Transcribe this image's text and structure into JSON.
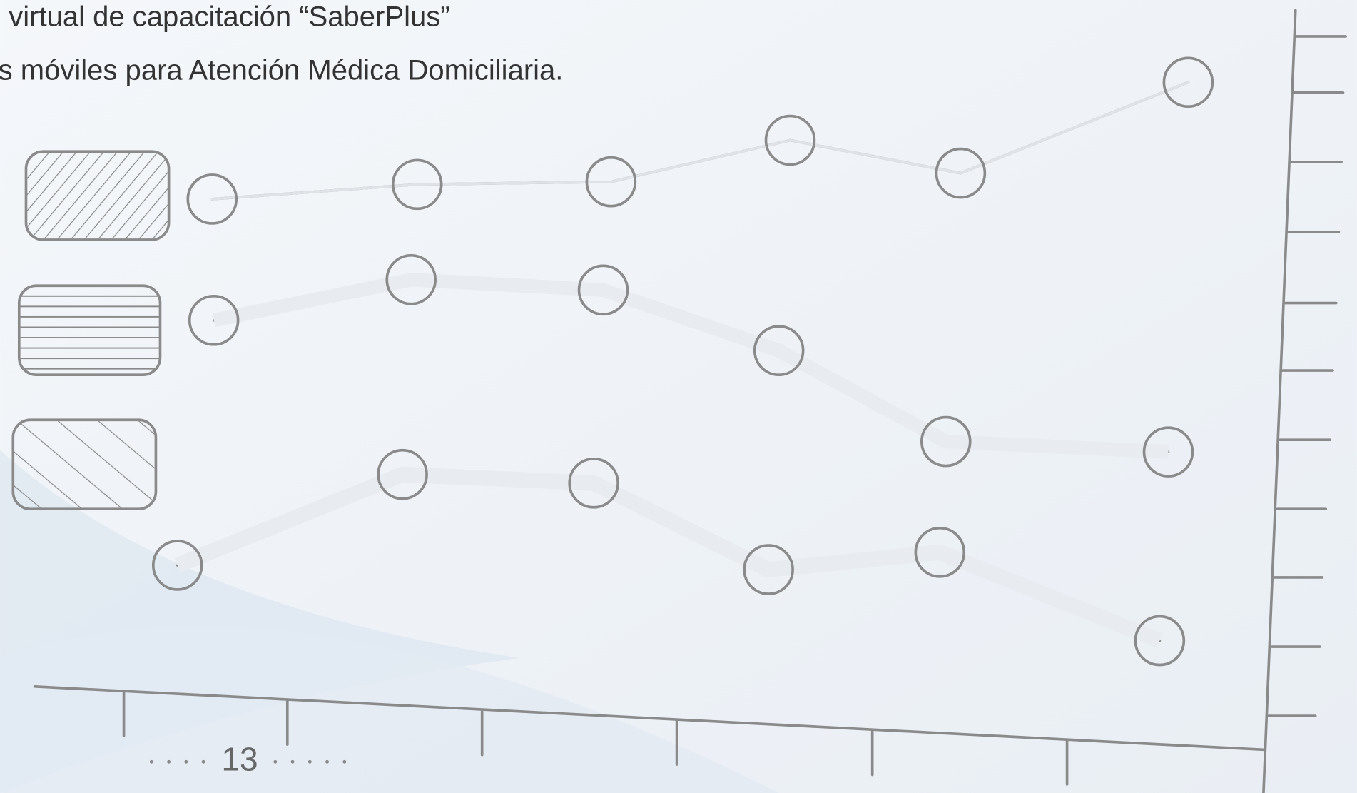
{
  "header": {
    "line1": "virtual de capacitación “SaberPlus”",
    "line2": "s móviles para Atención Médica Domiciliaria."
  },
  "footer": {
    "page_number": "13"
  }
}
